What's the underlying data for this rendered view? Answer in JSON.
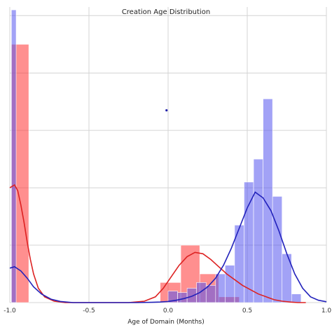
{
  "chart_data": {
    "type": "bar",
    "title": "Creation Age Distribution",
    "xlabel": "Age of Domain (Months)",
    "ylabel": "",
    "xlim": [
      -1.0,
      1.0
    ],
    "ylim": [
      0,
      10.3
    ],
    "grid": true,
    "x_ticks": [
      -1.0,
      -0.5,
      0.0,
      0.5,
      1.0
    ],
    "x_tick_labels": [
      "-1.0",
      "-0.5",
      "0.0",
      "0.5",
      "1.0"
    ],
    "y_gridlines": [
      2,
      4,
      6,
      8,
      10
    ],
    "series": [
      {
        "color": "#ff3333",
        "kde_color": "#dd2222",
        "bins": [
          {
            "x0": -0.99,
            "x1": -0.88,
            "height": 9.0
          },
          {
            "x0": -0.05,
            "x1": 0.08,
            "height": 0.7
          },
          {
            "x0": 0.08,
            "x1": 0.2,
            "height": 2.0
          },
          {
            "x0": 0.2,
            "x1": 0.32,
            "height": 1.0
          },
          {
            "x0": 0.32,
            "x1": 0.45,
            "height": 0.2
          }
        ],
        "kde": {
          "x": [
            -1.0,
            -0.97,
            -0.95,
            -0.93,
            -0.91,
            -0.89,
            -0.87,
            -0.85,
            -0.82,
            -0.78,
            -0.72,
            -0.65,
            -0.55,
            -0.45,
            -0.35,
            -0.25,
            -0.15,
            -0.08,
            -0.03,
            0.02,
            0.07,
            0.12,
            0.17,
            0.22,
            0.27,
            0.32,
            0.37,
            0.42,
            0.47,
            0.52,
            0.57,
            0.62,
            0.67,
            0.72,
            0.77,
            0.82,
            0.87
          ],
          "y": [
            4.0,
            4.1,
            3.9,
            3.4,
            2.8,
            2.1,
            1.5,
            1.0,
            0.5,
            0.2,
            0.05,
            0.0,
            0.0,
            0.0,
            0.0,
            0.0,
            0.05,
            0.2,
            0.5,
            0.9,
            1.3,
            1.6,
            1.75,
            1.7,
            1.5,
            1.25,
            1.0,
            0.8,
            0.6,
            0.45,
            0.3,
            0.2,
            0.1,
            0.05,
            0.02,
            0.0,
            0.0
          ]
        }
      },
      {
        "color": "#5555ee",
        "kde_color": "#2222bb",
        "bins": [
          {
            "x0": -0.99,
            "x1": -0.96,
            "height": 10.2
          },
          {
            "x0": 0.0,
            "x1": 0.06,
            "height": 0.4
          },
          {
            "x0": 0.06,
            "x1": 0.12,
            "height": 0.35
          },
          {
            "x0": 0.12,
            "x1": 0.18,
            "height": 0.5
          },
          {
            "x0": 0.18,
            "x1": 0.24,
            "height": 0.7
          },
          {
            "x0": 0.24,
            "x1": 0.3,
            "height": 0.6
          },
          {
            "x0": 0.3,
            "x1": 0.36,
            "height": 1.0
          },
          {
            "x0": 0.36,
            "x1": 0.42,
            "height": 1.3
          },
          {
            "x0": 0.42,
            "x1": 0.48,
            "height": 2.7
          },
          {
            "x0": 0.48,
            "x1": 0.54,
            "height": 4.2
          },
          {
            "x0": 0.54,
            "x1": 0.6,
            "height": 5.0
          },
          {
            "x0": 0.6,
            "x1": 0.66,
            "height": 7.1
          },
          {
            "x0": 0.66,
            "x1": 0.72,
            "height": 3.7
          },
          {
            "x0": 0.72,
            "x1": 0.78,
            "height": 1.7
          },
          {
            "x0": 0.78,
            "x1": 0.84,
            "height": 0.3
          }
        ],
        "kde": {
          "x": [
            -1.0,
            -0.97,
            -0.93,
            -0.89,
            -0.85,
            -0.8,
            -0.74,
            -0.68,
            -0.6,
            -0.5,
            -0.4,
            -0.3,
            -0.2,
            -0.1,
            -0.05,
            0.0,
            0.05,
            0.1,
            0.15,
            0.2,
            0.25,
            0.3,
            0.35,
            0.4,
            0.45,
            0.5,
            0.55,
            0.6,
            0.65,
            0.7,
            0.75,
            0.8,
            0.85,
            0.9,
            0.95,
            1.0
          ],
          "y": [
            1.2,
            1.25,
            1.1,
            0.85,
            0.55,
            0.3,
            0.12,
            0.04,
            0.0,
            0.0,
            0.0,
            0.0,
            0.0,
            0.01,
            0.02,
            0.04,
            0.08,
            0.14,
            0.22,
            0.35,
            0.55,
            0.85,
            1.3,
            1.9,
            2.6,
            3.3,
            3.85,
            3.65,
            3.2,
            2.5,
            1.7,
            1.0,
            0.5,
            0.2,
            0.08,
            0.03
          ]
        }
      }
    ],
    "annotations": [
      {
        "type": "dot",
        "x": -0.01,
        "y": 6.7,
        "color": "#2222aa"
      }
    ]
  }
}
